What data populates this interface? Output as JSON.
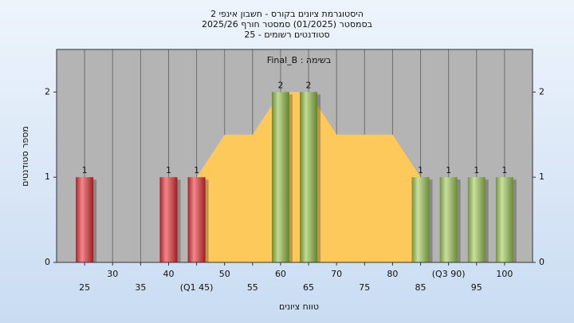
{
  "chart_data": {
    "type": "bar",
    "title": [
      "היסטוגרמת ציונים בקורס - חשבון אינפי 2",
      "בסמסטר  (01/2025)  סמסטר חורף 2025/26",
      "סטודנטים רשומים - 25"
    ],
    "annotation": "Final_B : בשימה",
    "xlabel": "טווח ציונים",
    "ylabel": "מספר סטודנטים",
    "xlim": [
      20,
      105
    ],
    "ylim": [
      0,
      2.5
    ],
    "xticks": [
      25,
      30,
      35,
      40,
      {
        "value": 45,
        "label": "(Q1 45)"
      },
      50,
      55,
      60,
      65,
      70,
      75,
      80,
      85,
      {
        "value": 90,
        "label": "(Q3 90)"
      },
      95,
      100
    ],
    "yticks": [
      0,
      1,
      2
    ],
    "plot_background": "#b4b4b4",
    "series": [
      {
        "type": "area",
        "color": "#fec95b",
        "x": [
          45,
          50,
          55,
          60,
          65,
          70,
          75,
          80,
          85
        ],
        "values": [
          1,
          1.5,
          1.5,
          2,
          2,
          1.5,
          1.5,
          1.5,
          1
        ]
      },
      {
        "type": "bar",
        "x": [
          25,
          40,
          45,
          60,
          65,
          85,
          90,
          95,
          100
        ],
        "values": [
          1,
          1,
          1,
          2,
          2,
          1,
          1,
          1,
          1
        ],
        "colors": [
          "#e3242f",
          "#e3242f",
          "#e3242f",
          "#8fbb3e",
          "#8fbb3e",
          "#9cc650",
          "#9cc650",
          "#9cc650",
          "#9cc650"
        ]
      }
    ]
  }
}
